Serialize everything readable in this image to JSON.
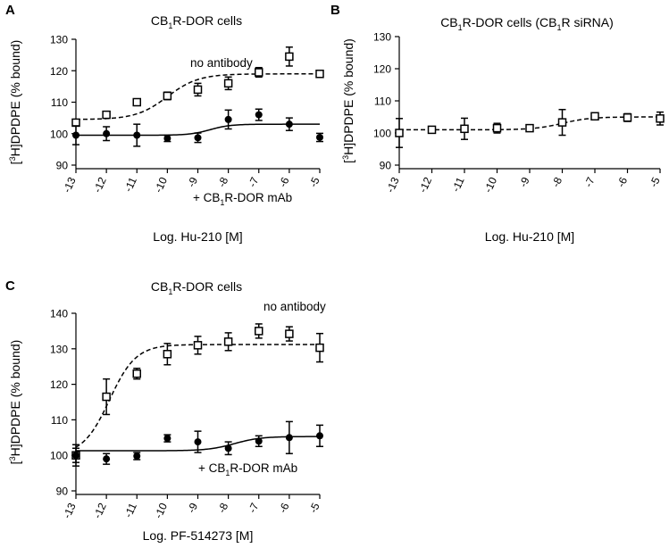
{
  "chart_data": [
    {
      "type": "scatter",
      "panel_label": "A",
      "title": {
        "pre": "CB",
        "sub": "1",
        "post": "R-DOR cells"
      },
      "ylabel": {
        "pre": "[",
        "sup": "3",
        "post": "H]DPDPE (% bound)"
      },
      "xlabel": "Log. Hu-210 [M]",
      "xlim": [
        -13,
        -5
      ],
      "ylim": [
        90,
        130
      ],
      "yticks": [
        90,
        100,
        110,
        120,
        130
      ],
      "xticks": [
        -13,
        -12,
        -11,
        -10,
        -9,
        -8,
        -7,
        -6,
        -5
      ],
      "x": [
        -13,
        -12,
        -11,
        -10,
        -9,
        -8,
        -7,
        -6,
        -5
      ],
      "series": [
        {
          "marker": "open-square",
          "line": "dashed",
          "values": [
            103.5,
            106,
            110,
            112,
            114,
            116,
            119.5,
            124.5,
            119
          ],
          "error": [
            0,
            1,
            0,
            1.2,
            2,
            2,
            1.5,
            3,
            1
          ],
          "fit": {
            "bottom": 104.5,
            "top": 119,
            "logEC50": -10.0,
            "hill": 0.85
          }
        },
        {
          "marker": "filled-circle",
          "line": "solid",
          "values": [
            99.5,
            100,
            99.5,
            98.5,
            98.7,
            104.5,
            106,
            103,
            98.8
          ],
          "error": [
            3,
            2.2,
            3.5,
            1,
            1.5,
            3,
            1.8,
            2,
            1.3
          ],
          "fit": {
            "bottom": 99.5,
            "top": 103,
            "logEC50": -8.6,
            "hill": 1.3
          }
        }
      ],
      "annotations": [
        {
          "text": "no antibody",
          "near": "upper series"
        },
        {
          "pre": "+ CB",
          "sub": "1",
          "post": "R-DOR mAb",
          "near": "lower series"
        }
      ]
    },
    {
      "type": "scatter",
      "panel_label": "B",
      "title": {
        "pre": "CB",
        "sub": "1",
        "post": "R-DOR cells (CB",
        "sub2": "1",
        "post2": "R  siRNA)"
      },
      "ylabel": {
        "pre": "[",
        "sup": "3",
        "post": "H]DPDPE (% bound)"
      },
      "xlabel": "Log. Hu-210 [M]",
      "xlim": [
        -13,
        -5
      ],
      "ylim": [
        90,
        130
      ],
      "yticks": [
        90,
        100,
        110,
        120,
        130
      ],
      "xticks": [
        -13,
        -12,
        -11,
        -10,
        -9,
        -8,
        -7,
        -6,
        -5
      ],
      "x": [
        -13,
        -12,
        -11,
        -10,
        -9,
        -8,
        -7,
        -6,
        -5
      ],
      "series": [
        {
          "marker": "open-square",
          "line": "dashed",
          "values": [
            100,
            101,
            101.3,
            101.5,
            101.5,
            103.3,
            105.2,
            104.8,
            104.5
          ],
          "error": [
            4.5,
            1,
            3.3,
            1.5,
            0.5,
            4,
            0.5,
            1.2,
            2
          ],
          "fit": {
            "bottom": 101,
            "top": 105,
            "logEC50": -8.0,
            "hill": 1.0
          }
        }
      ],
      "annotations": []
    },
    {
      "type": "scatter",
      "panel_label": "C",
      "title": {
        "pre": "CB",
        "sub": "1",
        "post": "R-DOR cells"
      },
      "ylabel": {
        "pre": "[",
        "sup": "3",
        "post": "H]DPDPE (% bound)"
      },
      "xlabel": "Log. PF-514273 [M]",
      "xlim": [
        -13,
        -5
      ],
      "ylim": [
        90,
        140
      ],
      "yticks": [
        90,
        100,
        110,
        120,
        130,
        140
      ],
      "xticks": [
        -13,
        -12,
        -11,
        -10,
        -9,
        -8,
        -7,
        -6,
        -5
      ],
      "x": [
        -13,
        -12,
        -11,
        -10,
        -9,
        -8,
        -7,
        -6,
        -5
      ],
      "series": [
        {
          "marker": "open-square",
          "line": "dashed",
          "values": [
            100,
            116.5,
            123,
            128.5,
            131,
            132,
            135,
            134.2,
            130.3
          ],
          "error": [
            3,
            5,
            1.5,
            3,
            2.5,
            2.5,
            2,
            2,
            4
          ],
          "fit": {
            "bottom": 100,
            "top": 131.2,
            "logEC50": -11.9,
            "hill": 1.0
          }
        },
        {
          "marker": "filled-circle",
          "line": "solid",
          "values": [
            100,
            99,
            99.8,
            104.8,
            103.8,
            102,
            104,
            105,
            105.5
          ],
          "error": [
            2,
            1.5,
            1,
            1,
            3,
            1.8,
            1.5,
            4.5,
            3
          ],
          "fit": {
            "bottom": 101.3,
            "top": 105.3,
            "logEC50": -7.8,
            "hill": 1.0
          }
        }
      ],
      "annotations": [
        {
          "text": "no antibody",
          "near": "upper series"
        },
        {
          "pre": "+ CB",
          "sub": "1",
          "post": "R-DOR mAb",
          "near": "lower series"
        }
      ]
    }
  ]
}
